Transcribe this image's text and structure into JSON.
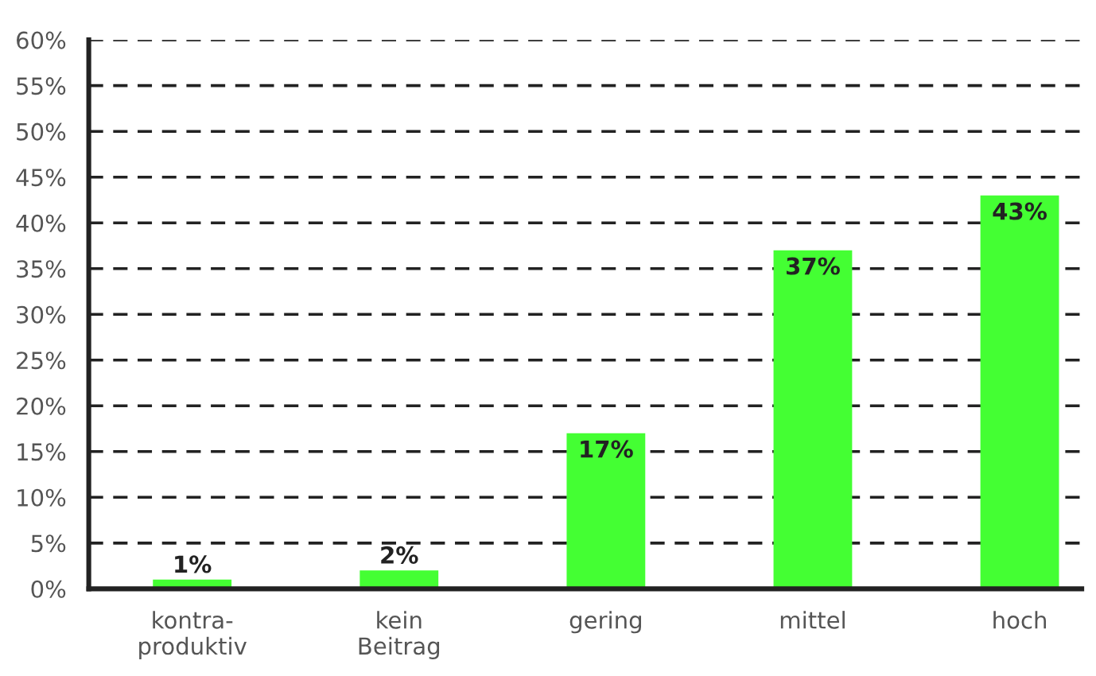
{
  "chart_data": {
    "type": "bar",
    "categories": [
      "kontra-\nproduktiv",
      "kein\nBeitrag",
      "gering",
      "mittel",
      "hoch"
    ],
    "values": [
      1,
      2,
      17,
      37,
      43
    ],
    "color": "#44ff33",
    "value_labels": [
      "1%",
      "2%",
      "17%",
      "37%",
      "43%"
    ],
    "ylim": [
      0,
      60
    ],
    "yticks": [
      {
        "value": 0,
        "label": "0%"
      },
      {
        "value": 5,
        "label": "5%"
      },
      {
        "value": 10,
        "label": "10%"
      },
      {
        "value": 15,
        "label": "15%"
      },
      {
        "value": 20,
        "label": "20%"
      },
      {
        "value": 25,
        "label": "25%"
      },
      {
        "value": 30,
        "label": "30%"
      },
      {
        "value": 35,
        "label": "35%"
      },
      {
        "value": 40,
        "label": "40%"
      },
      {
        "value": 45,
        "label": "45%"
      },
      {
        "value": 50,
        "label": "50%"
      },
      {
        "value": 55,
        "label": "55%"
      },
      {
        "value": 60,
        "label": "60%"
      }
    ],
    "grid": "y",
    "legend": false
  }
}
